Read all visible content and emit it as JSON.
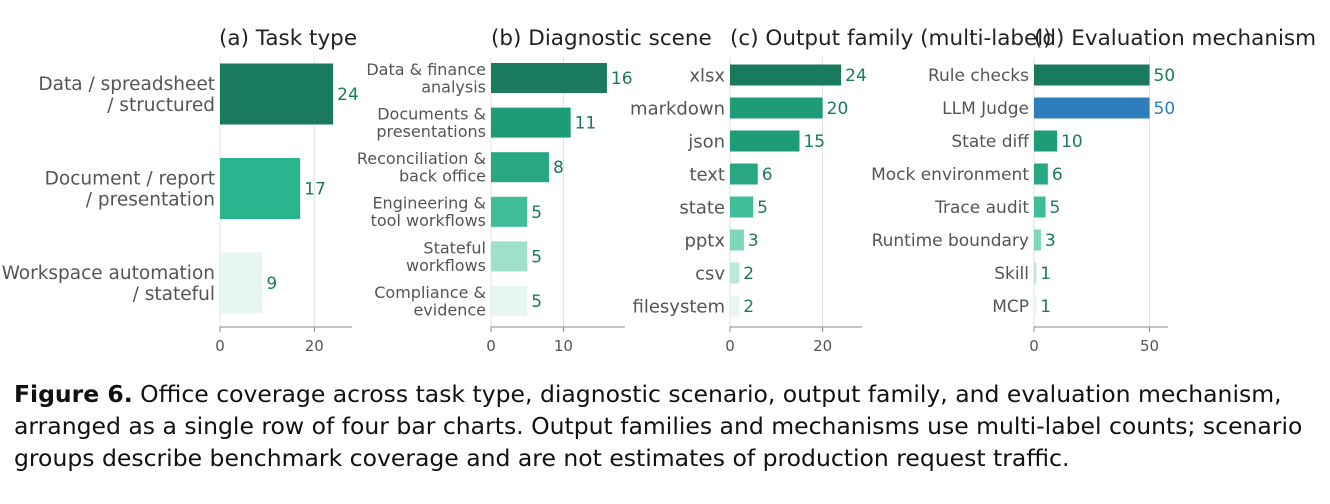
{
  "chart_data": [
    {
      "type": "bar",
      "orientation": "horizontal",
      "title": "(a)  Task type",
      "categories": [
        "Data / spreadsheet\n/ structured",
        "Document / report\n/ presentation",
        "Workspace automation\n/ stateful"
      ],
      "values": [
        24,
        17,
        9
      ],
      "xticks": [
        0,
        20
      ],
      "xlim": [
        0,
        28
      ],
      "colors": [
        "#1a7a5e",
        "#2bb58f",
        "#e8f6f1"
      ],
      "grid": true
    },
    {
      "type": "bar",
      "orientation": "horizontal",
      "title": "(b)  Diagnostic scene",
      "categories": [
        "Data & finance\nanalysis",
        "Documents &\npresentations",
        "Reconciliation &\nback office",
        "Engineering &\ntool workflows",
        "Stateful\nworkflows",
        "Compliance &\nevidence"
      ],
      "values": [
        16,
        11,
        8,
        5,
        5,
        5
      ],
      "xticks": [
        0,
        10
      ],
      "xlim": [
        0,
        18.5
      ],
      "colors": [
        "#1a7a5e",
        "#1e9b77",
        "#27a882",
        "#3fbc98",
        "#9ee0cb",
        "#e8f6f1"
      ],
      "grid": true
    },
    {
      "type": "bar",
      "orientation": "horizontal",
      "title": "(c)  Output family (multi-label)",
      "categories": [
        "xlsx",
        "markdown",
        "json",
        "text",
        "state",
        "pptx",
        "csv",
        "filesystem"
      ],
      "values": [
        24,
        20,
        15,
        6,
        5,
        3,
        2,
        2
      ],
      "xticks": [
        0,
        20
      ],
      "xlim": [
        0,
        28.5
      ],
      "colors": [
        "#1a7a5e",
        "#1e9b77",
        "#1e9b77",
        "#27a882",
        "#3fbc98",
        "#7ed6bc",
        "#b8e9d9",
        "#e8f6f1"
      ],
      "grid": true
    },
    {
      "type": "bar",
      "orientation": "horizontal",
      "title": "(d)  Evaluation mechanism",
      "categories": [
        "Rule checks",
        "LLM Judge",
        "State diff",
        "Mock environment",
        "Trace audit",
        "Runtime boundary",
        "Skill",
        "MCP"
      ],
      "values": [
        50,
        50,
        10,
        6,
        5,
        3,
        1,
        1
      ],
      "xticks": [
        0,
        50
      ],
      "xlim": [
        0,
        58
      ],
      "colors": [
        "#1a7a5e",
        "#2e7ebb",
        "#1e9b77",
        "#27a882",
        "#3fbc98",
        "#7ed6bc",
        "#b8e9d9",
        "#e8f6f1"
      ],
      "label_colors": [
        "#1a7a5e",
        "#2e7ebb",
        "#1a7a5e",
        "#1a7a5e",
        "#1a7a5e",
        "#1a7a5e",
        "#1a7a5e",
        "#1a7a5e"
      ],
      "grid": true
    }
  ],
  "caption": {
    "label": "Figure 6.",
    "text": "Office coverage across task type, diagnostic scenario, output family, and evaluation mechanism, arranged as a single row of four bar charts.  Output families and mechanisms use multi-label counts; scenario groups describe benchmark coverage and are not estimates of production request traffic."
  }
}
